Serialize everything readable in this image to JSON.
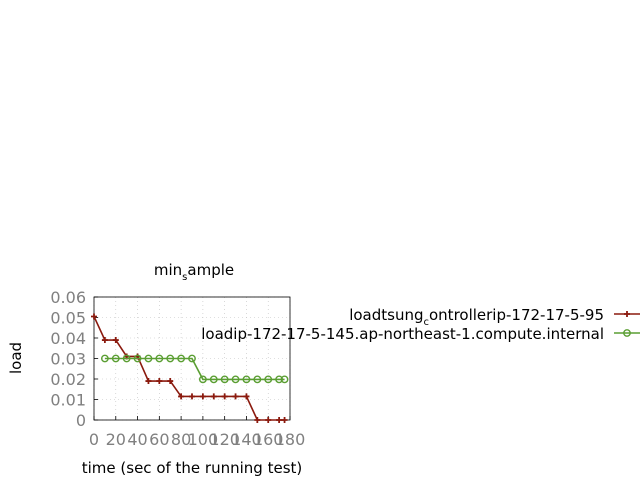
{
  "chart_data": {
    "type": "line",
    "title": "min",
    "title_subscript": "s",
    "title_suffix": "ample",
    "xlabel": "time (sec of the running test)",
    "ylabel": "load",
    "xlim": [
      0,
      180
    ],
    "ylim": [
      0,
      0.06
    ],
    "x_ticks": [
      "0",
      "20",
      "40",
      "60",
      "80",
      "100",
      "120",
      "140",
      "160",
      "180"
    ],
    "y_ticks": [
      "0",
      "0.01",
      "0.02",
      "0.03",
      "0.04",
      "0.05",
      "0.06"
    ],
    "grid": true,
    "legend_position": "right",
    "series": [
      {
        "name": "loadtsung_controllerip-172-17-5-95",
        "legend_parts": [
          "loadtsung",
          "c",
          "ontrollerip-172-17-5-95"
        ],
        "color": "#8b1a0e",
        "marker": "plus",
        "points": [
          [
            0,
            0.0505
          ],
          [
            10,
            0.039
          ],
          [
            20,
            0.039
          ],
          [
            30,
            0.031
          ],
          [
            40,
            0.031
          ],
          [
            50,
            0.019
          ],
          [
            60,
            0.019
          ],
          [
            70,
            0.019
          ],
          [
            80,
            0.0115
          ],
          [
            90,
            0.0115
          ],
          [
            100,
            0.0115
          ],
          [
            110,
            0.0115
          ],
          [
            120,
            0.0115
          ],
          [
            130,
            0.0115
          ],
          [
            140,
            0.0115
          ],
          [
            150,
            0.0
          ],
          [
            160,
            0.0
          ],
          [
            170,
            0.0
          ],
          [
            175,
            0.0
          ]
        ]
      },
      {
        "name": "loadip-172-17-5-145.ap-northeast-1.compute.internal",
        "legend_parts": [
          "loadip-172-17-5-145.ap-northeast-1.compute.internal"
        ],
        "color": "#5a9e32",
        "marker": "circle",
        "points": [
          [
            10,
            0.03
          ],
          [
            20,
            0.03
          ],
          [
            30,
            0.03
          ],
          [
            40,
            0.03
          ],
          [
            50,
            0.03
          ],
          [
            60,
            0.03
          ],
          [
            70,
            0.03
          ],
          [
            80,
            0.03
          ],
          [
            90,
            0.03
          ],
          [
            100,
            0.0198
          ],
          [
            110,
            0.0198
          ],
          [
            120,
            0.0198
          ],
          [
            130,
            0.0198
          ],
          [
            140,
            0.0198
          ],
          [
            150,
            0.0198
          ],
          [
            160,
            0.0198
          ],
          [
            170,
            0.0198
          ],
          [
            175,
            0.0198
          ]
        ]
      }
    ]
  }
}
